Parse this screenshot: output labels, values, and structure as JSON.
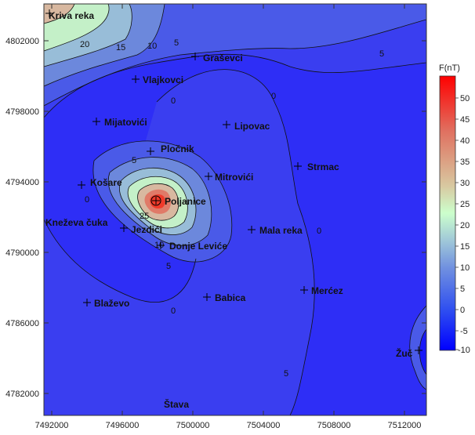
{
  "map": {
    "x_ticks": [
      "7492000",
      "7496000",
      "7500000",
      "7504000",
      "7508000",
      "7512000"
    ],
    "y_ticks": [
      "4802000",
      "4798000",
      "4794000",
      "4790000",
      "4786000",
      "4782000"
    ],
    "places": [
      {
        "name": "Kriva reka"
      },
      {
        "name": "Graševci"
      },
      {
        "name": "Vlajkovci"
      },
      {
        "name": "Mijatovići"
      },
      {
        "name": "Lipovac"
      },
      {
        "name": "Pločnik"
      },
      {
        "name": "Strmac"
      },
      {
        "name": "Košare"
      },
      {
        "name": "Mitrovići"
      },
      {
        "name": "Poljanice"
      },
      {
        "name": "Kneževa čuka"
      },
      {
        "name": "Jezdići"
      },
      {
        "name": "Mala reka"
      },
      {
        "name": "Donje Leviće"
      },
      {
        "name": "Blaževo"
      },
      {
        "name": "Babica"
      },
      {
        "name": "Merćez"
      },
      {
        "name": "Žuč"
      },
      {
        "name": "Štava"
      }
    ],
    "contour_labels": [
      "20",
      "15",
      "10",
      "5",
      "0",
      "5",
      "0",
      "5",
      "25",
      "10",
      "5",
      "0",
      "0",
      "0",
      "5"
    ],
    "colors": {
      "low": "#0000ff",
      "mid": "#ccdccc",
      "high": "#ff0000"
    }
  },
  "legend": {
    "title": "F(nT)",
    "levels": [
      "50",
      "45",
      "40",
      "35",
      "30",
      "25",
      "20",
      "15",
      "10",
      "5",
      "0",
      "-5",
      "-10"
    ]
  }
}
